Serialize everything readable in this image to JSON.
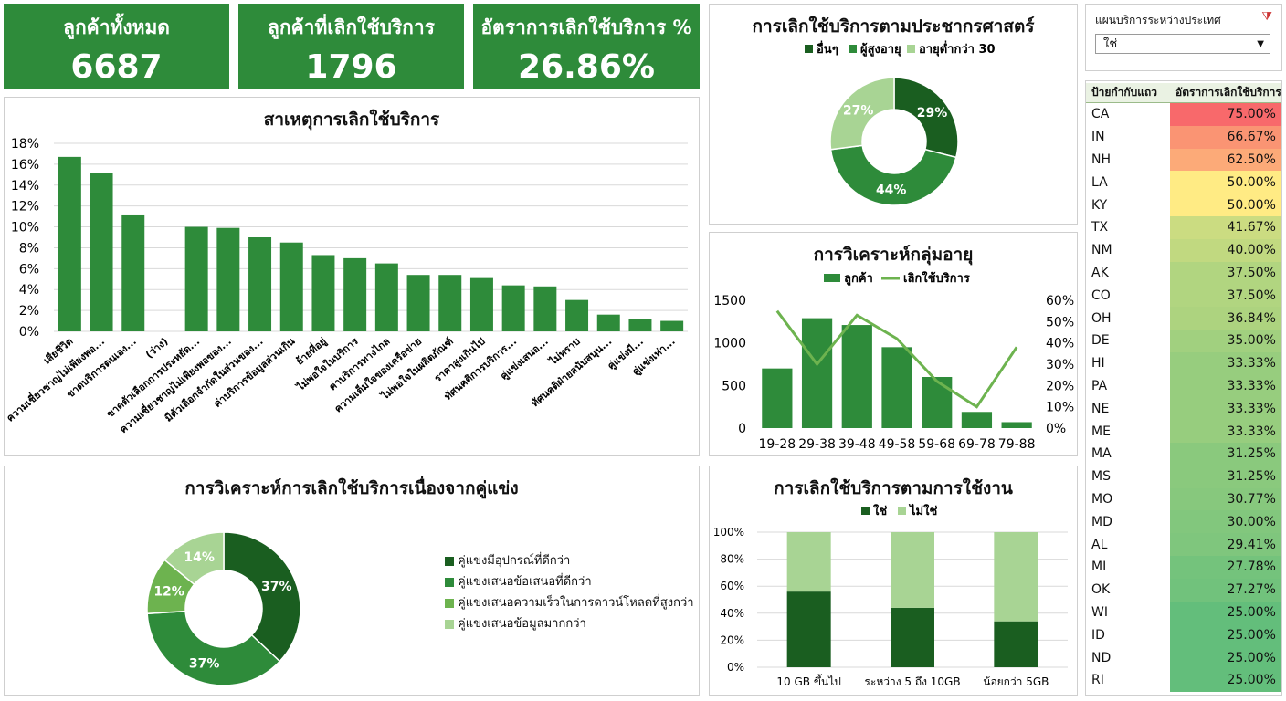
{
  "kpis": [
    {
      "label": "ลูกค้าทั้งหมด",
      "value": "6687"
    },
    {
      "label": "ลูกค้าที่เลิกใช้บริการ",
      "value": "1796"
    },
    {
      "label": "อัตราการเลิกใช้บริการ %",
      "value": "26.86%"
    }
  ],
  "slicer": {
    "title": "แผนบริการระหว่างประเทศ",
    "selected": "ใช่"
  },
  "state_table": {
    "headers": [
      "ป้ายกำกับแถว",
      "อัตราการเลิกใช้บริการ"
    ],
    "rows": [
      {
        "state": "CA",
        "rate": "75.00%",
        "value": 75.0
      },
      {
        "state": "IN",
        "rate": "66.67%",
        "value": 66.67
      },
      {
        "state": "NH",
        "rate": "62.50%",
        "value": 62.5
      },
      {
        "state": "LA",
        "rate": "50.00%",
        "value": 50.0
      },
      {
        "state": "KY",
        "rate": "50.00%",
        "value": 50.0
      },
      {
        "state": "TX",
        "rate": "41.67%",
        "value": 41.67
      },
      {
        "state": "NM",
        "rate": "40.00%",
        "value": 40.0
      },
      {
        "state": "AK",
        "rate": "37.50%",
        "value": 37.5
      },
      {
        "state": "CO",
        "rate": "37.50%",
        "value": 37.5
      },
      {
        "state": "OH",
        "rate": "36.84%",
        "value": 36.84
      },
      {
        "state": "DE",
        "rate": "35.00%",
        "value": 35.0
      },
      {
        "state": "HI",
        "rate": "33.33%",
        "value": 33.33
      },
      {
        "state": "PA",
        "rate": "33.33%",
        "value": 33.33
      },
      {
        "state": "NE",
        "rate": "33.33%",
        "value": 33.33
      },
      {
        "state": "ME",
        "rate": "33.33%",
        "value": 33.33
      },
      {
        "state": "MA",
        "rate": "31.25%",
        "value": 31.25
      },
      {
        "state": "MS",
        "rate": "31.25%",
        "value": 31.25
      },
      {
        "state": "MO",
        "rate": "30.77%",
        "value": 30.77
      },
      {
        "state": "MD",
        "rate": "30.00%",
        "value": 30.0
      },
      {
        "state": "AL",
        "rate": "29.41%",
        "value": 29.41
      },
      {
        "state": "MI",
        "rate": "27.78%",
        "value": 27.78
      },
      {
        "state": "OK",
        "rate": "27.27%",
        "value": 27.27
      },
      {
        "state": "WI",
        "rate": "25.00%",
        "value": 25.0
      },
      {
        "state": "ID",
        "rate": "25.00%",
        "value": 25.0
      },
      {
        "state": "ND",
        "rate": "25.00%",
        "value": 25.0
      },
      {
        "state": "RI",
        "rate": "25.00%",
        "value": 25.0
      }
    ]
  },
  "chart_data": [
    {
      "id": "reasons",
      "type": "bar",
      "title": "สาเหตุการเลิกใช้บริการ",
      "categories": [
        "เสียชีวิต",
        "ความเชี่ยวชาญไม่เพียงพอ...",
        "ขาดบริการตนเอง...",
        "(ว่าง)",
        "ขาดตัวเลือกการประหยัด...",
        "ความเชี่ยวชาญไม่เพียงพอของ...",
        "มีตัวเลือกจำกัดในส่วนของ...",
        "ค่าบริการข้อมูลส่วนเกิน",
        "ย้ายที่อยู่",
        "ไม่พอใจในบริการ",
        "ค่าบริการทางไกล",
        "ความเต็มใจของเครือข่าย",
        "ไม่พอใจในผลิตภัณฑ์",
        "ราคาสูงเกินไป",
        "ทัศนคติการบริการ...",
        "คู่แข่งเสนอ...",
        "ไม่ทราบ",
        "ทัศนคติฝ่ายสนับสนุน...",
        "คู่แข่งมี...",
        "คู่แข่งเท่า..."
      ],
      "values": [
        16.7,
        15.2,
        11.1,
        0,
        10.0,
        9.9,
        9.0,
        8.5,
        7.3,
        7.0,
        6.5,
        5.4,
        5.4,
        5.1,
        4.4,
        4.3,
        3.0,
        1.6,
        1.2,
        1.0
      ],
      "y_ticks": [
        "0%",
        "2%",
        "4%",
        "6%",
        "8%",
        "10%",
        "12%",
        "14%",
        "16%",
        "18%"
      ],
      "ylim": [
        0,
        18
      ],
      "color": "#2e8b3a"
    },
    {
      "id": "demographics",
      "type": "pie",
      "title": "การเลิกใช้บริการตามประชากรศาสตร์",
      "slices": [
        {
          "name": "อื่นๆ",
          "value": 29,
          "label": "29%",
          "color": "#1a5e20"
        },
        {
          "name": "ผู้สูงอายุ",
          "value": 44,
          "label": "44%",
          "color": "#2e8b3a"
        },
        {
          "name": "อายุต่ำกว่า 30",
          "value": 27,
          "label": "27%",
          "color": "#a8d494"
        }
      ]
    },
    {
      "id": "age",
      "type": "bar",
      "title": "การวิเคราะห์กลุ่มอายุ",
      "categories": [
        "19-28",
        "29-38",
        "39-48",
        "49-58",
        "59-68",
        "69-78",
        "79-88"
      ],
      "series": [
        {
          "name": "ลูกค้า",
          "kind": "bar",
          "axis": "left",
          "values": [
            700,
            1290,
            1210,
            950,
            600,
            190,
            70
          ],
          "color": "#2e8b3a"
        },
        {
          "name": "เลิกใช้บริการ",
          "kind": "line",
          "axis": "right",
          "values": [
            55,
            30,
            53,
            42,
            22,
            10,
            38
          ],
          "color": "#6db34f"
        }
      ],
      "y_left_ticks": [
        "0",
        "500",
        "1000",
        "1500"
      ],
      "y_left_lim": [
        0,
        1500
      ],
      "y_right_ticks": [
        "0%",
        "10%",
        "20%",
        "30%",
        "40%",
        "50%",
        "60%"
      ],
      "y_right_lim": [
        0,
        60
      ]
    },
    {
      "id": "competitor",
      "type": "pie",
      "title": "การวิเคราะห์การเลิกใช้บริการเนื่องจากคู่แข่ง",
      "slices": [
        {
          "name": "คู่แข่งมีอุปกรณ์ที่ดีกว่า",
          "value": 37,
          "label": "37%",
          "color": "#1a5e20"
        },
        {
          "name": "คู่แข่งเสนอข้อเสนอที่ดีกว่า",
          "value": 37,
          "label": "37%",
          "color": "#2e8b3a"
        },
        {
          "name": "คู่แข่งเสนอความเร็วในการดาวน์โหลดที่สูงกว่า",
          "value": 12,
          "label": "12%",
          "color": "#6db34f"
        },
        {
          "name": "คู่แข่งเสนอข้อมูลมากกว่า",
          "value": 14,
          "label": "14%",
          "color": "#a8d494"
        }
      ]
    },
    {
      "id": "usage",
      "type": "bar",
      "stacked": true,
      "title": "การเลิกใช้บริการตามการใช้งาน",
      "categories": [
        "10 GB ขึ้นไป",
        "ระหว่าง 5 ถึง 10GB",
        "น้อยกว่า 5GB"
      ],
      "series": [
        {
          "name": "ใช่",
          "values": [
            56,
            44,
            34
          ],
          "color": "#1a5e20"
        },
        {
          "name": "ไม่ใช่",
          "values": [
            44,
            56,
            66
          ],
          "color": "#a8d494"
        }
      ],
      "y_ticks": [
        "0%",
        "20%",
        "40%",
        "60%",
        "80%",
        "100%"
      ],
      "ylim": [
        0,
        100
      ]
    }
  ]
}
